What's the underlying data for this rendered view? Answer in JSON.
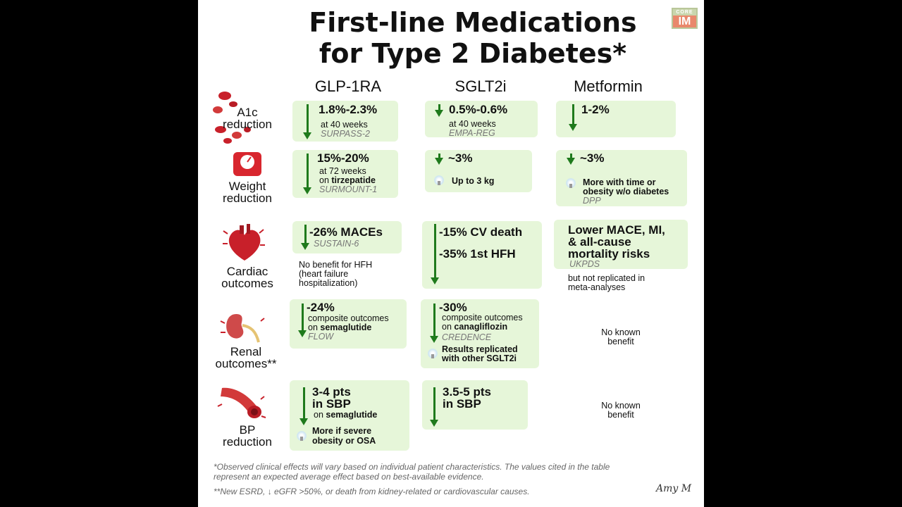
{
  "title": {
    "line1": "First-line Medications",
    "line2": "for Type 2 Diabetes*"
  },
  "logo": {
    "top": "CORE",
    "main": "IM"
  },
  "columns": [
    "GLP-1RA",
    "SGLT2i",
    "Metformin"
  ],
  "rows": {
    "a1c": {
      "label1": "A1c",
      "label2": "reduction"
    },
    "weight": {
      "label1": "Weight",
      "label2": "reduction"
    },
    "cardiac": {
      "label1": "Cardiac",
      "label2": "outcomes"
    },
    "renal": {
      "label1": "Renal",
      "label2": "outcomes**"
    },
    "bp": {
      "label1": "BP",
      "label2": "reduction"
    }
  },
  "cells": {
    "a1c_glp": {
      "value": "1.8%-2.3%",
      "note": "at 40 weeks",
      "trial": "SURPASS-2"
    },
    "a1c_sglt": {
      "value": "0.5%-0.6%",
      "note": "at 40 weeks",
      "trial": "EMPA-REG"
    },
    "a1c_met": {
      "value": "1-2%"
    },
    "wt_glp": {
      "value": "15%-20%",
      "note1": "at 72 weeks",
      "note2a": "on ",
      "note2b": "tirzepatide",
      "trial": "SURMOUNT-1"
    },
    "wt_sglt": {
      "value": "~3%",
      "tip": "Up to 3 kg"
    },
    "wt_met": {
      "value": "~3%",
      "tip1": "More with time or",
      "tip2": "obesity w/o diabetes",
      "trial": "DPP"
    },
    "card_glp": {
      "value": "-26% MACEs",
      "trial": "SUSTAIN-6",
      "note1": "No benefit for HFH",
      "note2": "(heart failure",
      "note3": "hospitalization)"
    },
    "card_sglt": {
      "value1": "-15% CV death",
      "value2": "-35% 1st HFH"
    },
    "card_met": {
      "value1": "Lower MACE, MI,",
      "value2": "& all-cause",
      "value3": "mortality risks",
      "trial": "UKPDS",
      "note1": "but not replicated in",
      "note2": "meta-analyses"
    },
    "ren_glp": {
      "value": "-24%",
      "note1": "composite outcomes",
      "note2a": "on ",
      "note2b": "semaglutide",
      "trial": "FLOW"
    },
    "ren_sglt": {
      "value": "-30%",
      "note1": "composite outcomes",
      "note2a": "on ",
      "note2b": "canagliflozin",
      "trial": "CREDENCE",
      "tip1": "Results replicated",
      "tip2": "with other SGLT2i"
    },
    "ren_met": {
      "text1": "No known",
      "text2": "benefit"
    },
    "bp_glp": {
      "value1": "3-4 pts",
      "value2": "in SBP",
      "note2a": "on ",
      "note2b": "semaglutide",
      "tip1": "More if severe",
      "tip2": "obesity or OSA"
    },
    "bp_sglt": {
      "value1": "3.5-5 pts",
      "value2": "in SBP"
    },
    "bp_met": {
      "text1": "No known",
      "text2": "benefit"
    }
  },
  "footnotes": {
    "f1a": "*Observed clinical effects will vary based on individual patient characteristics. The values cited in the table",
    "f1b": "represent an expected average effect based on best-available evidence.",
    "f2": "**New ESRD, ↓ eGFR >50%, or death from kidney-related or cardiovascular causes."
  },
  "signature": "Amy M",
  "colors": {
    "arrow": "#1f7a1c",
    "highlight": "#e6f6d9",
    "red": "#c8202a",
    "background": "#000000"
  }
}
